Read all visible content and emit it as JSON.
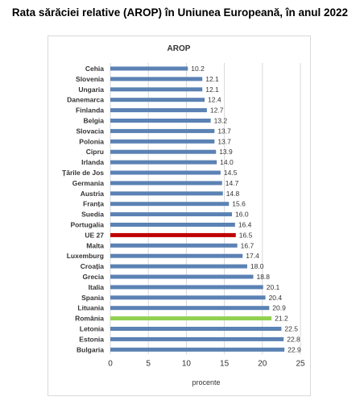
{
  "page": {
    "title": "Rata sărăciei relative (AROP) în Uniunea Europeană, în anul 2022"
  },
  "chart_data": {
    "type": "bar",
    "orientation": "horizontal",
    "title": "AROP",
    "xlabel": "procente",
    "ylabel": "",
    "xlim": [
      0,
      25
    ],
    "xticks": [
      "0",
      "5",
      "10",
      "15",
      "20",
      "25"
    ],
    "grid": true,
    "legend": "none",
    "categories": [
      "Cehia",
      "Slovenia",
      "Ungaria",
      "Danemarca",
      "Finlanda",
      "Belgia",
      "Slovacia",
      "Polonia",
      "Cipru",
      "Irlanda",
      "Țările de Jos",
      "Germania",
      "Austria",
      "Franța",
      "Suedia",
      "Portugalia",
      "UE 27",
      "Malta",
      "Luxemburg",
      "Croația",
      "Grecia",
      "Italia",
      "Spania",
      "Lituania",
      "România",
      "Letonia",
      "Estonia",
      "Bulgaria"
    ],
    "values": [
      10.2,
      12.1,
      12.1,
      12.4,
      12.7,
      13.2,
      13.7,
      13.7,
      13.9,
      14.0,
      14.5,
      14.7,
      14.8,
      15.6,
      16.0,
      16.4,
      16.5,
      16.7,
      17.4,
      18.0,
      18.8,
      20.1,
      20.4,
      20.9,
      21.2,
      22.5,
      22.8,
      22.9
    ],
    "value_labels": [
      "10.2",
      "12.1",
      "12.1",
      "12.4",
      "12.7",
      "13.2",
      "13.7",
      "13.7",
      "13.9",
      "14.0",
      "14.5",
      "14.7",
      "14.8",
      "15.6",
      "16.0",
      "16.4",
      "16.5",
      "16.7",
      "17.4",
      "18.0",
      "18.8",
      "20.1",
      "20.4",
      "20.9",
      "21.2",
      "22.5",
      "22.8",
      "22.9"
    ],
    "colors": {
      "default": "#5b82b4",
      "highlight_eu": "#c00000",
      "highlight_romania": "#92d050",
      "grid": "#d9d9d9",
      "text": "#333333"
    },
    "highlights": {
      "UE 27": "highlight_eu",
      "România": "highlight_romania"
    }
  }
}
